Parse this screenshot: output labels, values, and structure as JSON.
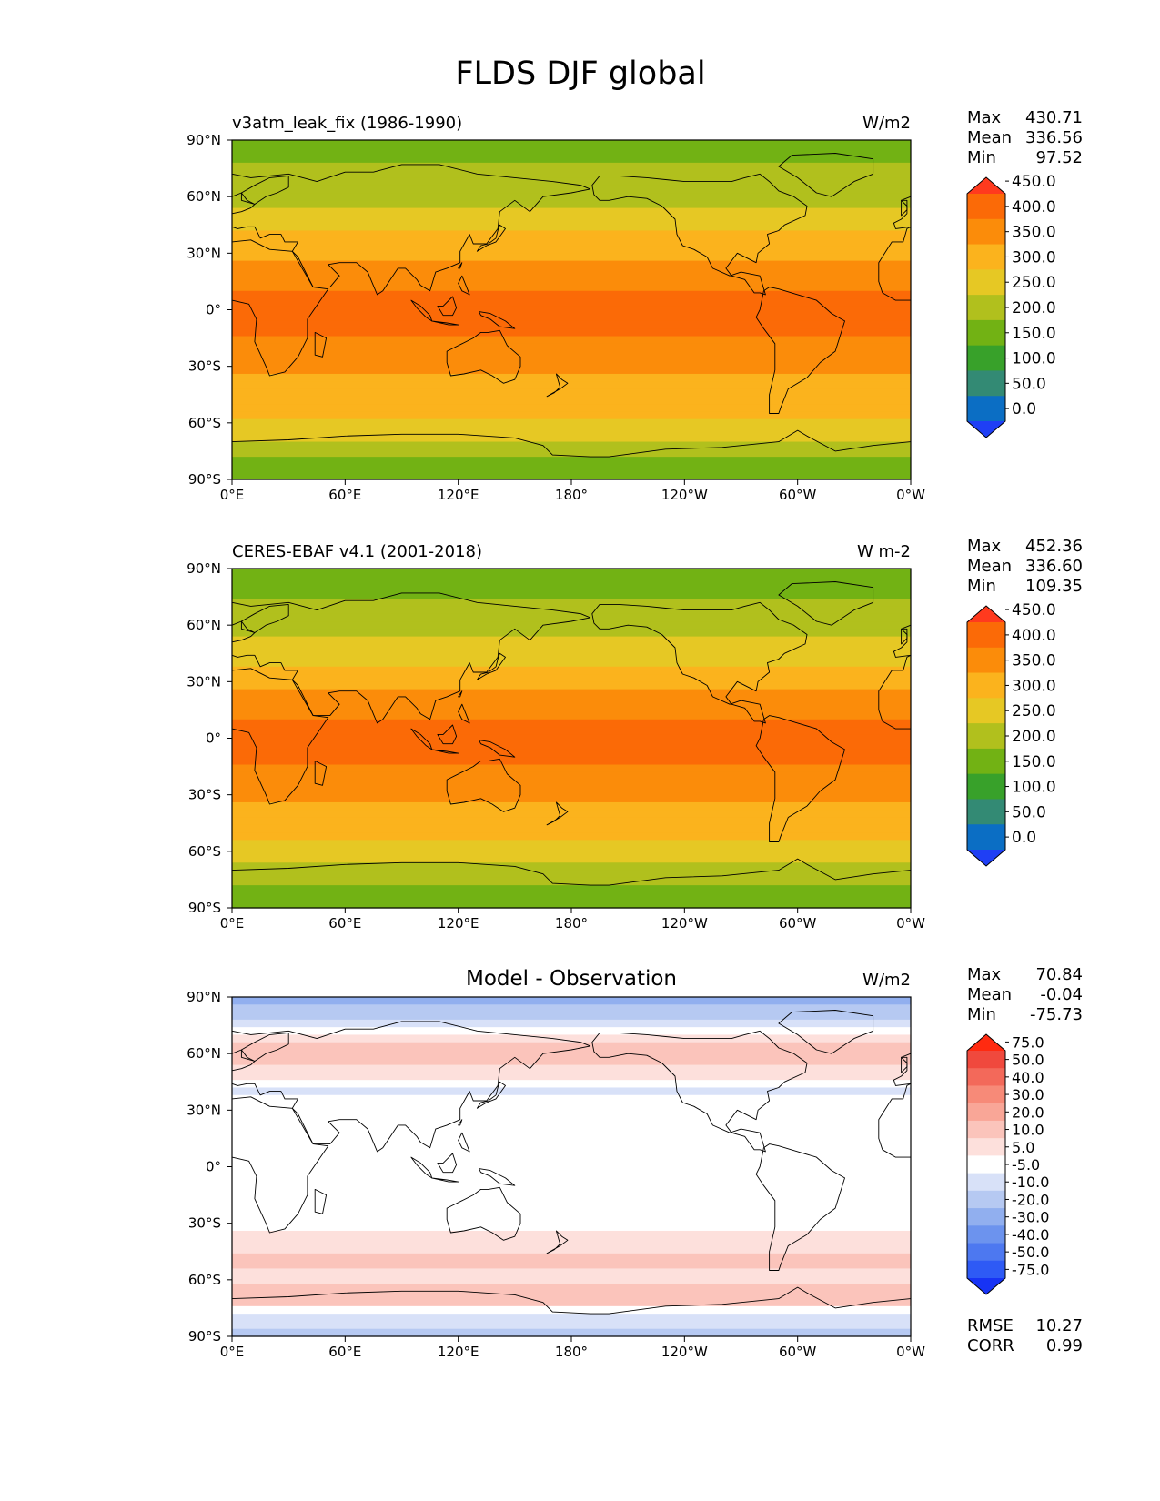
{
  "figure_title": "FLDS DJF global",
  "chart_data": [
    {
      "type": "heatmap",
      "map": "global filled contour map (cylindrical equidistant)",
      "title_left": "v3atm_leak_fix (1986-1990)",
      "title_center": "",
      "units": "W/m2",
      "stats": [
        {
          "label": "Max",
          "value": "430.71"
        },
        {
          "label": "Mean",
          "value": "336.56"
        },
        {
          "label": "Min",
          "value": "97.52"
        }
      ],
      "colorbar": {
        "extend": "both",
        "levels": [
          "0.0",
          "50.0",
          "100.0",
          "150.0",
          "200.0",
          "250.0",
          "300.0",
          "350.0",
          "400.0",
          "450.0"
        ],
        "colors": [
          "#1f3ff5",
          "#0b6ec4",
          "#338a74",
          "#38a12a",
          "#72b214",
          "#b1c01d",
          "#e6c824",
          "#fbb31d",
          "#fb8c0a",
          "#fb6a07",
          "#ff3a1e"
        ]
      },
      "xticks": [
        "0°E",
        "60°E",
        "120°E",
        "180°",
        "120°W",
        "60°W",
        "0°W"
      ],
      "yticks": [
        "90°N",
        "60°N",
        "30°N",
        "0°",
        "30°S",
        "60°S",
        "90°S"
      ],
      "xlim": [
        0,
        360
      ],
      "ylim": [
        -90,
        90
      ],
      "zonal_field": [
        {
          "lat": 90,
          "value": 190
        },
        {
          "lat": 80,
          "value": 195
        },
        {
          "lat": 70,
          "value": 215
        },
        {
          "lat": 60,
          "value": 235
        },
        {
          "lat": 50,
          "value": 265
        },
        {
          "lat": 40,
          "value": 300
        },
        {
          "lat": 30,
          "value": 330
        },
        {
          "lat": 20,
          "value": 370
        },
        {
          "lat": 10,
          "value": 405
        },
        {
          "lat": 0,
          "value": 410
        },
        {
          "lat": -10,
          "value": 405
        },
        {
          "lat": -20,
          "value": 385
        },
        {
          "lat": -30,
          "value": 360
        },
        {
          "lat": -40,
          "value": 340
        },
        {
          "lat": -50,
          "value": 315
        },
        {
          "lat": -60,
          "value": 290
        },
        {
          "lat": -70,
          "value": 250
        },
        {
          "lat": -80,
          "value": 180
        },
        {
          "lat": -90,
          "value": 170
        }
      ]
    },
    {
      "type": "heatmap",
      "map": "global filled contour map (cylindrical equidistant)",
      "title_left": "CERES-EBAF v4.1 (2001-2018)",
      "title_center": "",
      "units": "W m-2",
      "stats": [
        {
          "label": "Max",
          "value": "452.36"
        },
        {
          "label": "Mean",
          "value": "336.60"
        },
        {
          "label": "Min",
          "value": "109.35"
        }
      ],
      "colorbar": {
        "extend": "both",
        "levels": [
          "0.0",
          "50.0",
          "100.0",
          "150.0",
          "200.0",
          "250.0",
          "300.0",
          "350.0",
          "400.0",
          "450.0"
        ],
        "colors": [
          "#1f3ff5",
          "#0b6ec4",
          "#338a74",
          "#38a12a",
          "#72b214",
          "#b1c01d",
          "#e6c824",
          "#fbb31d",
          "#fb8c0a",
          "#fb6a07",
          "#ff3a1e"
        ]
      },
      "xticks": [
        "0°E",
        "60°E",
        "120°E",
        "180°",
        "120°W",
        "60°W",
        "0°W"
      ],
      "yticks": [
        "90°N",
        "60°N",
        "30°N",
        "0°",
        "30°S",
        "60°S",
        "90°S"
      ],
      "xlim": [
        0,
        360
      ],
      "ylim": [
        -90,
        90
      ],
      "zonal_field": [
        {
          "lat": 90,
          "value": 185
        },
        {
          "lat": 80,
          "value": 190
        },
        {
          "lat": 70,
          "value": 210
        },
        {
          "lat": 60,
          "value": 230
        },
        {
          "lat": 50,
          "value": 262
        },
        {
          "lat": 40,
          "value": 298
        },
        {
          "lat": 30,
          "value": 332
        },
        {
          "lat": 20,
          "value": 372
        },
        {
          "lat": 10,
          "value": 405
        },
        {
          "lat": 0,
          "value": 412
        },
        {
          "lat": -10,
          "value": 405
        },
        {
          "lat": -20,
          "value": 385
        },
        {
          "lat": -30,
          "value": 360
        },
        {
          "lat": -40,
          "value": 335
        },
        {
          "lat": -50,
          "value": 310
        },
        {
          "lat": -60,
          "value": 285
        },
        {
          "lat": -70,
          "value": 240
        },
        {
          "lat": -80,
          "value": 175
        },
        {
          "lat": -90,
          "value": 165
        }
      ]
    },
    {
      "type": "heatmap",
      "map": "global filled contour map (cylindrical equidistant)",
      "title_left": "",
      "title_center": "Model - Observation",
      "units": "W/m2",
      "stats": [
        {
          "label": "Max",
          "value": "70.84"
        },
        {
          "label": "Mean",
          "value": "-0.04"
        },
        {
          "label": "Min",
          "value": "-75.73"
        }
      ],
      "bottom_stats": [
        {
          "label": "RMSE",
          "value": "10.27"
        },
        {
          "label": "CORR",
          "value": "0.99"
        }
      ],
      "colorbar": {
        "extend": "both",
        "levels": [
          "-75.0",
          "-50.0",
          "-40.0",
          "-30.0",
          "-20.0",
          "-10.0",
          "-5.0",
          "5.0",
          "10.0",
          "20.0",
          "30.0",
          "40.0",
          "50.0",
          "75.0"
        ],
        "colors": [
          "#1733f5",
          "#2e5af5",
          "#4d78f0",
          "#6c93ee",
          "#91afef",
          "#b6c9f2",
          "#d8e1f8",
          "#ffffff",
          "#fde0dc",
          "#fbc4bb",
          "#f9a697",
          "#f78a78",
          "#f3695a",
          "#f0493d",
          "#ff2a10"
        ]
      },
      "xticks": [
        "0°E",
        "60°E",
        "120°E",
        "180°",
        "120°W",
        "60°W",
        "0°W"
      ],
      "yticks": [
        "90°N",
        "60°N",
        "30°N",
        "0°",
        "30°S",
        "60°S",
        "90°S"
      ],
      "xlim": [
        0,
        360
      ],
      "ylim": [
        -90,
        90
      ],
      "zonal_field": [
        {
          "lat": 90,
          "value": -25
        },
        {
          "lat": 80,
          "value": -15
        },
        {
          "lat": 70,
          "value": 7
        },
        {
          "lat": 60,
          "value": 12
        },
        {
          "lat": 50,
          "value": 8
        },
        {
          "lat": 40,
          "value": -6
        },
        {
          "lat": 30,
          "value": 3
        },
        {
          "lat": 20,
          "value": 0
        },
        {
          "lat": 10,
          "value": 0
        },
        {
          "lat": 0,
          "value": 0
        },
        {
          "lat": -10,
          "value": 0
        },
        {
          "lat": -20,
          "value": 3
        },
        {
          "lat": -30,
          "value": 4
        },
        {
          "lat": -40,
          "value": 8
        },
        {
          "lat": -50,
          "value": 12
        },
        {
          "lat": -60,
          "value": 7
        },
        {
          "lat": -70,
          "value": 15
        },
        {
          "lat": -80,
          "value": -8
        },
        {
          "lat": -90,
          "value": -12
        }
      ]
    }
  ]
}
